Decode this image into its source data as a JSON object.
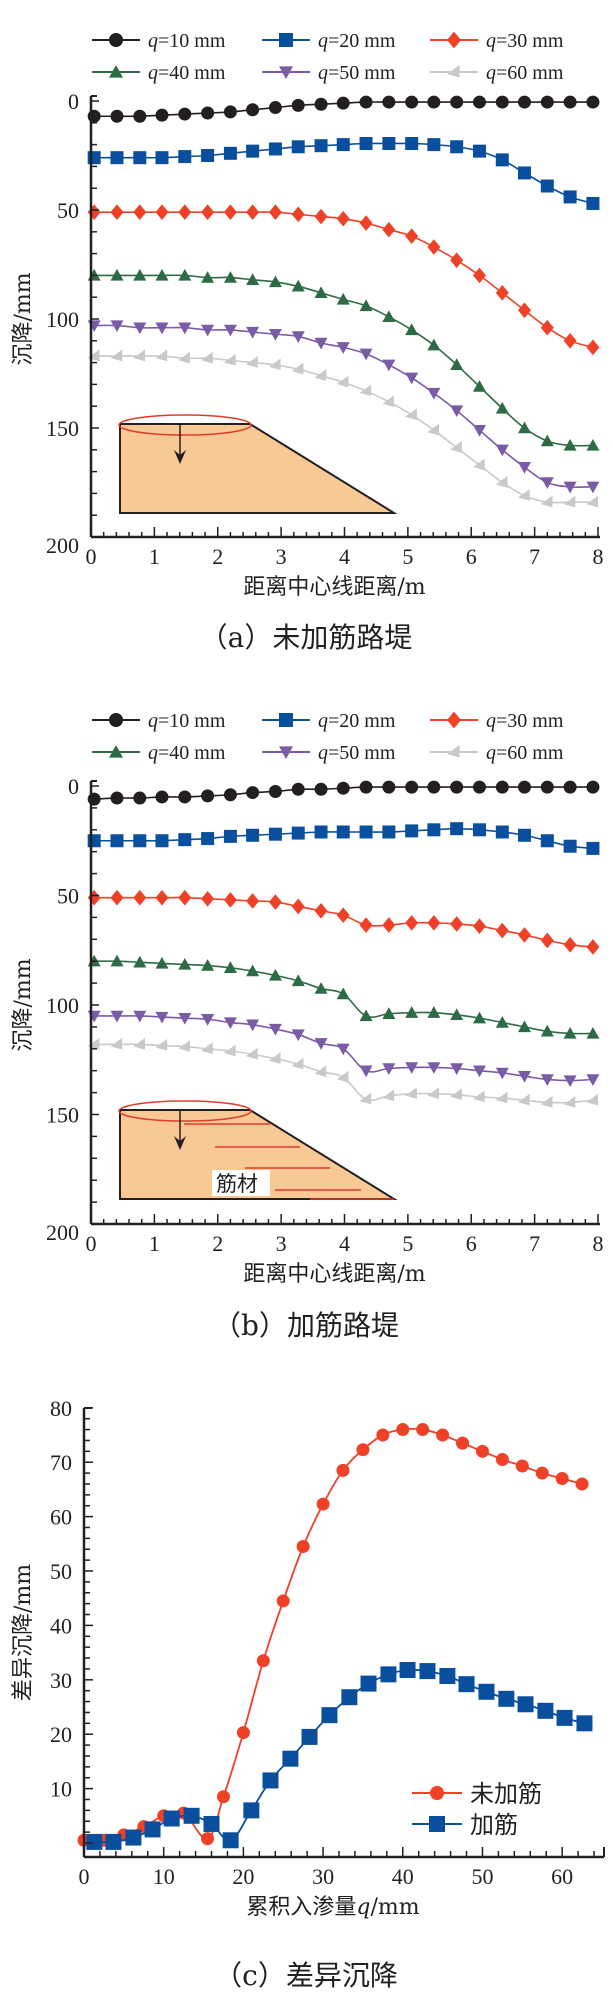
{
  "chart_data": [
    {
      "id": "a",
      "type": "line",
      "caption": "（a）未加筋路堤",
      "title": "",
      "xlabel": "距离中心线距离/m",
      "ylabel": "沉降/mm",
      "xlim": [
        0,
        8
      ],
      "ylim": [
        0,
        200
      ],
      "y_inverted": true,
      "xticks": [
        "0",
        "1",
        "2",
        "3",
        "4",
        "5",
        "6",
        "7",
        "8"
      ],
      "yticks": [
        "0",
        "50",
        "100",
        "150",
        "200"
      ],
      "legend": "top",
      "inset": {
        "type": "embankment-diagram",
        "label": ""
      },
      "x": [
        0.05,
        0.41,
        0.77,
        1.12,
        1.48,
        1.84,
        2.2,
        2.55,
        2.91,
        3.27,
        3.63,
        3.98,
        4.34,
        4.7,
        5.06,
        5.41,
        5.77,
        6.13,
        6.49,
        6.84,
        7.2,
        7.56,
        7.92
      ],
      "series": [
        {
          "name": "q=10 mm",
          "color": "#231f20",
          "marker": "circle",
          "values": [
            7,
            7,
            7,
            6.5,
            6,
            5.5,
            5,
            4,
            3,
            2,
            1.5,
            1,
            0.5,
            0.5,
            0.5,
            0.5,
            0.5,
            0.5,
            0.5,
            0.5,
            0.5,
            0.5,
            0.5
          ]
        },
        {
          "name": "q=20 mm",
          "color": "#0a4f9e",
          "marker": "square",
          "values": [
            26,
            26,
            26,
            26,
            25.5,
            25,
            24,
            23,
            22,
            21,
            20.5,
            20,
            19.5,
            19.5,
            19.5,
            20,
            21,
            23,
            27,
            33,
            39,
            44,
            47
          ]
        },
        {
          "name": "q=30 mm",
          "color": "#ee4128",
          "marker": "diamond",
          "values": [
            51,
            51,
            51,
            51,
            51,
            51,
            51,
            51,
            51,
            52,
            53,
            54,
            56,
            59,
            62,
            67,
            73,
            80,
            88,
            96,
            104,
            110,
            113
          ]
        },
        {
          "name": "q=40 mm",
          "color": "#2e6b45",
          "marker": "triangle-up",
          "values": [
            80,
            80,
            80,
            80,
            80,
            81,
            81,
            82,
            83,
            85,
            88,
            91,
            94,
            99,
            105,
            112,
            121,
            131,
            141,
            150,
            156,
            158,
            158
          ]
        },
        {
          "name": "q=50 mm",
          "color": "#7b5aa6",
          "marker": "triangle-down",
          "values": [
            103,
            103,
            104,
            104,
            104,
            105,
            105,
            106,
            107,
            108,
            111,
            113,
            116,
            121,
            127,
            134,
            142,
            151,
            160,
            168,
            175,
            177,
            177
          ]
        },
        {
          "name": "q=60 mm",
          "color": "#c8c9cb",
          "marker": "triangle-left",
          "values": [
            117,
            117,
            117,
            117,
            118,
            118,
            119,
            120,
            121,
            123,
            126,
            129,
            133,
            138,
            144,
            151,
            159,
            167,
            175,
            181,
            184,
            184,
            184
          ]
        }
      ]
    },
    {
      "id": "b",
      "type": "line",
      "caption": "（b）加筋路堤",
      "title": "",
      "xlabel": "距离中心线距离/m",
      "ylabel": "沉降/mm",
      "xlim": [
        0,
        8
      ],
      "ylim": [
        0,
        200
      ],
      "y_inverted": true,
      "xticks": [
        "0",
        "1",
        "2",
        "3",
        "4",
        "5",
        "6",
        "7",
        "8"
      ],
      "yticks": [
        "0",
        "50",
        "100",
        "150",
        "200"
      ],
      "legend": "top",
      "inset": {
        "type": "reinforced-embankment-diagram",
        "label": "筋材"
      },
      "x": [
        0.05,
        0.41,
        0.77,
        1.12,
        1.48,
        1.84,
        2.2,
        2.55,
        2.91,
        3.27,
        3.63,
        3.98,
        4.34,
        4.7,
        5.06,
        5.41,
        5.77,
        6.13,
        6.49,
        6.84,
        7.2,
        7.56,
        7.92
      ],
      "series": [
        {
          "name": "q=10 mm",
          "color": "#231f20",
          "marker": "circle",
          "values": [
            6,
            5.5,
            5.5,
            5,
            5,
            4.5,
            4,
            3,
            2.5,
            1.5,
            1.5,
            1,
            0.5,
            0.5,
            0.5,
            0.5,
            0.5,
            0.5,
            0.5,
            0.5,
            0.5,
            0.5,
            0.5
          ]
        },
        {
          "name": "q=20 mm",
          "color": "#0a4f9e",
          "marker": "square",
          "values": [
            25,
            25,
            25,
            25,
            24.5,
            24,
            23,
            22.5,
            22,
            21.5,
            21,
            21,
            21,
            21,
            20.5,
            20,
            19.5,
            20,
            21,
            22.5,
            25,
            27.5,
            28.5
          ]
        },
        {
          "name": "q=30 mm",
          "color": "#ee4128",
          "marker": "diamond",
          "values": [
            51,
            51,
            51,
            51,
            51,
            51.5,
            52,
            52.5,
            53,
            55,
            57,
            59,
            63.5,
            63.5,
            62.5,
            62.5,
            63,
            64,
            66,
            68,
            70.5,
            72.5,
            73.5
          ]
        },
        {
          "name": "q=40 mm",
          "color": "#2e6b45",
          "marker": "triangle-up",
          "values": [
            80,
            80,
            80.5,
            81,
            81.5,
            82,
            83,
            84.5,
            86.5,
            89,
            92.5,
            95,
            105,
            104,
            103.5,
            103.5,
            104.5,
            106,
            108,
            110,
            112,
            113,
            113
          ]
        },
        {
          "name": "q=50 mm",
          "color": "#7b5aa6",
          "marker": "triangle-down",
          "values": [
            105,
            105,
            105,
            105.5,
            106,
            106.5,
            108,
            109,
            111,
            113.5,
            117.5,
            120,
            130,
            129,
            128.5,
            128.5,
            129,
            130,
            131,
            132.5,
            134,
            134.5,
            134
          ]
        },
        {
          "name": "q=60 mm",
          "color": "#c8c9cb",
          "marker": "triangle-left",
          "values": [
            118,
            118,
            118,
            118.5,
            119,
            120,
            121,
            122.5,
            124.5,
            127,
            130.5,
            133,
            143,
            141.5,
            140.5,
            140.5,
            141,
            142,
            142.5,
            143.5,
            144.5,
            144.5,
            143.5
          ]
        }
      ]
    },
    {
      "id": "c",
      "type": "line",
      "caption": "（c）差异沉降",
      "title": "",
      "xlabel": "累积入渗量q/mm",
      "ylabel": "差异沉降/mm",
      "xlim": [
        0,
        65
      ],
      "ylim": [
        -2.5,
        80
      ],
      "y_inverted": false,
      "xticks": [
        "0",
        "10",
        "20",
        "30",
        "40",
        "50",
        "60"
      ],
      "yticks": [
        "10",
        "20",
        "30",
        "40",
        "50",
        "60",
        "70",
        "80"
      ],
      "legend": "bottom-right",
      "series": [
        {
          "name": "未加筋",
          "color": "#ee4128",
          "marker": "circle",
          "x": [
            0,
            2.5,
            5,
            7.5,
            10,
            12.5,
            15.5,
            17.5,
            20,
            22.5,
            25,
            27.5,
            30,
            32.5,
            35,
            37.5,
            40,
            42.5,
            45,
            47.5,
            50,
            52.5,
            55,
            57.5,
            60,
            62.5
          ],
          "values": [
            0.5,
            0.5,
            1.5,
            3,
            5,
            5.5,
            0.8,
            8.5,
            20.3,
            33.5,
            44.5,
            54.5,
            62.3,
            68.5,
            72.3,
            75,
            76,
            76,
            75,
            73.5,
            72,
            70.5,
            69.3,
            68,
            67,
            66
          ]
        },
        {
          "name": "加筋",
          "color": "#0a4f9e",
          "marker": "square",
          "x": [
            1.3,
            3.7,
            6.2,
            8.6,
            11,
            13.5,
            16,
            18.4,
            21,
            23.4,
            25.9,
            28.3,
            30.8,
            33.3,
            35.7,
            38.2,
            40.6,
            43.1,
            45.6,
            48,
            50.5,
            53,
            55.4,
            57.9,
            60.3,
            62.8
          ],
          "values": [
            0.2,
            0.2,
            1,
            2.5,
            4.5,
            5,
            3.5,
            0.5,
            6,
            11.5,
            15.5,
            19.5,
            23.5,
            26.8,
            29.3,
            31,
            31.8,
            31.6,
            30.7,
            29.2,
            27.8,
            26.5,
            25.5,
            24.3,
            23,
            22
          ]
        }
      ]
    }
  ]
}
